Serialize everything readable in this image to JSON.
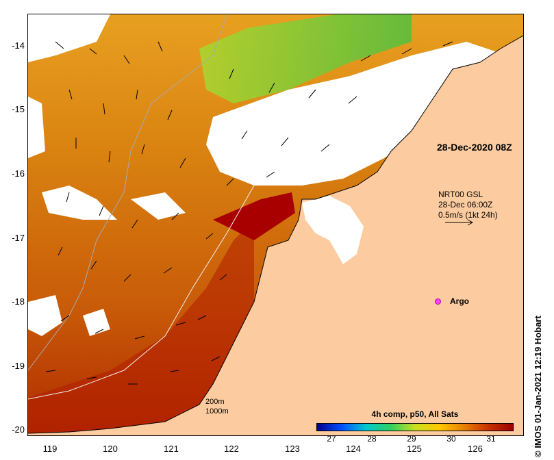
{
  "map": {
    "date_label": "28-Dec-2020 08Z",
    "product": {
      "line1": "NRT00 GSL",
      "line2": "28-Dec 06:00Z",
      "line3": "0.5m/s (1kt 24h)"
    },
    "argo_label": "Argo",
    "depth_legend": [
      "200m",
      "1000m"
    ],
    "credit": "© IMOS 01-Jan-2021 12:19 Hobart",
    "lon_ticks": [
      "119",
      "120",
      "121",
      "122",
      "123",
      "124",
      "125",
      "126"
    ],
    "lat_ticks": [
      "-14",
      "-15",
      "-16",
      "-17",
      "-18",
      "-19",
      "-20"
    ],
    "lon_range": [
      118.6,
      126.7
    ],
    "lat_range": [
      -20.2,
      -13.6
    ],
    "colors": {
      "land": "#fccca0",
      "cloud": "#ffffff",
      "argo": "#ff40ff"
    }
  },
  "colorbar": {
    "title": "4h comp, p50, All Sats",
    "ticks": [
      "27",
      "28",
      "29",
      "30",
      "31"
    ],
    "range": [
      26.3,
      31.6
    ],
    "colors": [
      "#00008c",
      "#0050ff",
      "#00c8d0",
      "#30d060",
      "#c8e020",
      "#ffc800",
      "#e88000",
      "#c83000",
      "#9c0000"
    ]
  }
}
